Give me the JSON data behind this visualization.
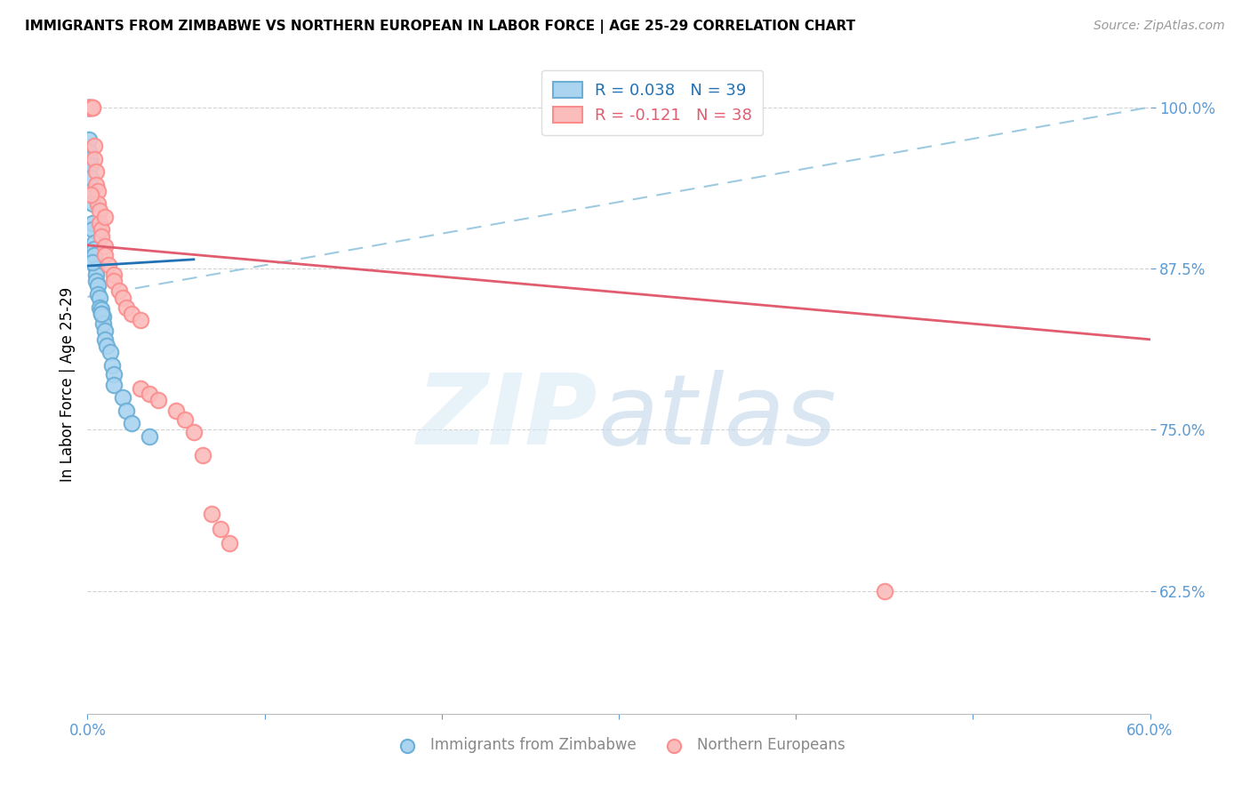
{
  "title": "IMMIGRANTS FROM ZIMBABWE VS NORTHERN EUROPEAN IN LABOR FORCE | AGE 25-29 CORRELATION CHART",
  "source": "Source: ZipAtlas.com",
  "ylabel": "In Labor Force | Age 25-29",
  "xlim": [
    0.0,
    0.6
  ],
  "ylim": [
    0.53,
    1.04
  ],
  "xticks": [
    0.0,
    0.1,
    0.2,
    0.3,
    0.4,
    0.5,
    0.6
  ],
  "xticklabels": [
    "0.0%",
    "",
    "",
    "",
    "",
    "",
    "60.0%"
  ],
  "yticks": [
    0.625,
    0.75,
    0.875,
    1.0
  ],
  "yticklabels": [
    "62.5%",
    "75.0%",
    "87.5%",
    "100.0%"
  ],
  "R_blue": 0.038,
  "N_blue": 39,
  "R_pink": -0.121,
  "N_pink": 38,
  "blue_face_color": "#aad4f0",
  "blue_edge_color": "#6baed6",
  "pink_face_color": "#fbbcbc",
  "pink_edge_color": "#fc8d8d",
  "blue_line_color": "#2171b5",
  "pink_line_color": "#e05c6e",
  "dash_line_color": "#92c5de",
  "axis_color": "#5b9bd5",
  "grid_color": "#c8c8c8",
  "background": "#ffffff",
  "blue_trend_x0": 0.0,
  "blue_trend_y0": 0.877,
  "blue_trend_x1": 0.06,
  "blue_trend_y1": 0.882,
  "pink_trend_x0": 0.0,
  "pink_trend_y0": 0.893,
  "pink_trend_x1": 0.6,
  "pink_trend_y1": 0.82,
  "dash_trend_x0": 0.0,
  "dash_trend_y0": 0.853,
  "dash_trend_x1": 0.6,
  "dash_trend_y1": 1.0,
  "blue_scatter_x": [
    0.0005,
    0.0005,
    0.001,
    0.001,
    0.001,
    0.0015,
    0.002,
    0.002,
    0.0025,
    0.003,
    0.003,
    0.003,
    0.004,
    0.004,
    0.004,
    0.005,
    0.005,
    0.005,
    0.006,
    0.006,
    0.007,
    0.007,
    0.008,
    0.008,
    0.009,
    0.009,
    0.01,
    0.01,
    0.011,
    0.013,
    0.014,
    0.015,
    0.015,
    0.02,
    0.022,
    0.025,
    0.035,
    0.008,
    0.003
  ],
  "blue_scatter_y": [
    1.0,
    1.0,
    1.0,
    0.975,
    0.965,
    0.96,
    0.955,
    0.945,
    0.935,
    0.925,
    0.91,
    0.905,
    0.895,
    0.89,
    0.885,
    0.875,
    0.87,
    0.865,
    0.862,
    0.855,
    0.852,
    0.845,
    0.843,
    0.84,
    0.838,
    0.832,
    0.827,
    0.82,
    0.815,
    0.81,
    0.8,
    0.793,
    0.785,
    0.775,
    0.765,
    0.755,
    0.745,
    0.84,
    0.88
  ],
  "pink_scatter_x": [
    0.001,
    0.002,
    0.002,
    0.003,
    0.003,
    0.004,
    0.004,
    0.005,
    0.005,
    0.006,
    0.006,
    0.007,
    0.007,
    0.008,
    0.008,
    0.01,
    0.01,
    0.012,
    0.015,
    0.015,
    0.018,
    0.02,
    0.022,
    0.025,
    0.03,
    0.03,
    0.035,
    0.04,
    0.05,
    0.055,
    0.06,
    0.065,
    0.07,
    0.075,
    0.08,
    0.45,
    0.002,
    0.01
  ],
  "pink_scatter_y": [
    1.0,
    1.0,
    1.0,
    1.0,
    1.0,
    0.97,
    0.96,
    0.95,
    0.94,
    0.935,
    0.925,
    0.92,
    0.91,
    0.905,
    0.9,
    0.892,
    0.885,
    0.878,
    0.87,
    0.865,
    0.858,
    0.852,
    0.845,
    0.84,
    0.835,
    0.782,
    0.778,
    0.773,
    0.765,
    0.758,
    0.748,
    0.73,
    0.685,
    0.673,
    0.662,
    0.625,
    0.932,
    0.915
  ]
}
